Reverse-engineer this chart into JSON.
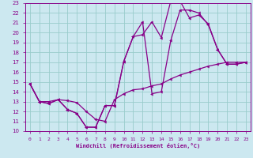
{
  "xlabel": "Windchill (Refroidissement éolien,°C)",
  "ylabel": "",
  "bg_color": "#cce8f0",
  "line_color": "#880088",
  "grid_color": "#99cccc",
  "xlim": [
    -0.5,
    23.5
  ],
  "ylim": [
    10,
    23
  ],
  "xticks": [
    0,
    1,
    2,
    3,
    4,
    5,
    6,
    7,
    8,
    9,
    10,
    11,
    12,
    13,
    14,
    15,
    16,
    17,
    18,
    19,
    20,
    21,
    22,
    23
  ],
  "yticks": [
    10,
    11,
    12,
    13,
    14,
    15,
    16,
    17,
    18,
    19,
    20,
    21,
    22,
    23
  ],
  "line1_x": [
    0,
    1,
    2,
    3,
    4,
    5,
    6,
    7,
    8,
    9,
    10,
    11,
    12,
    13,
    14,
    15,
    16,
    17,
    18,
    19,
    20,
    21,
    22,
    23
  ],
  "line1_y": [
    14.8,
    13.0,
    12.8,
    13.2,
    12.2,
    11.8,
    10.4,
    10.4,
    12.6,
    12.6,
    17.1,
    19.6,
    19.8,
    21.1,
    19.5,
    23.2,
    23.2,
    21.5,
    21.8,
    20.9,
    18.3,
    16.8,
    16.8,
    17.0
  ],
  "line2_x": [
    0,
    1,
    2,
    3,
    4,
    5,
    6,
    7,
    8,
    9,
    10,
    11,
    12,
    13,
    14,
    15,
    16,
    17,
    18,
    19,
    20,
    21,
    22,
    23
  ],
  "line2_y": [
    14.8,
    13.0,
    12.8,
    13.2,
    12.2,
    11.8,
    10.4,
    10.4,
    12.6,
    12.6,
    17.1,
    19.6,
    21.1,
    13.8,
    14.0,
    19.2,
    22.3,
    22.3,
    22.0,
    20.8,
    18.3,
    16.8,
    16.8,
    17.0
  ],
  "line3_x": [
    0,
    1,
    2,
    3,
    4,
    5,
    6,
    7,
    8,
    9,
    10,
    11,
    12,
    13,
    14,
    15,
    16,
    17,
    18,
    19,
    20,
    21,
    22,
    23
  ],
  "line3_y": [
    14.8,
    13.0,
    13.0,
    13.2,
    13.1,
    12.9,
    12.0,
    11.2,
    11.0,
    13.2,
    13.8,
    14.2,
    14.3,
    14.6,
    14.8,
    15.3,
    15.7,
    16.0,
    16.3,
    16.6,
    16.8,
    17.0,
    17.0,
    17.0
  ]
}
